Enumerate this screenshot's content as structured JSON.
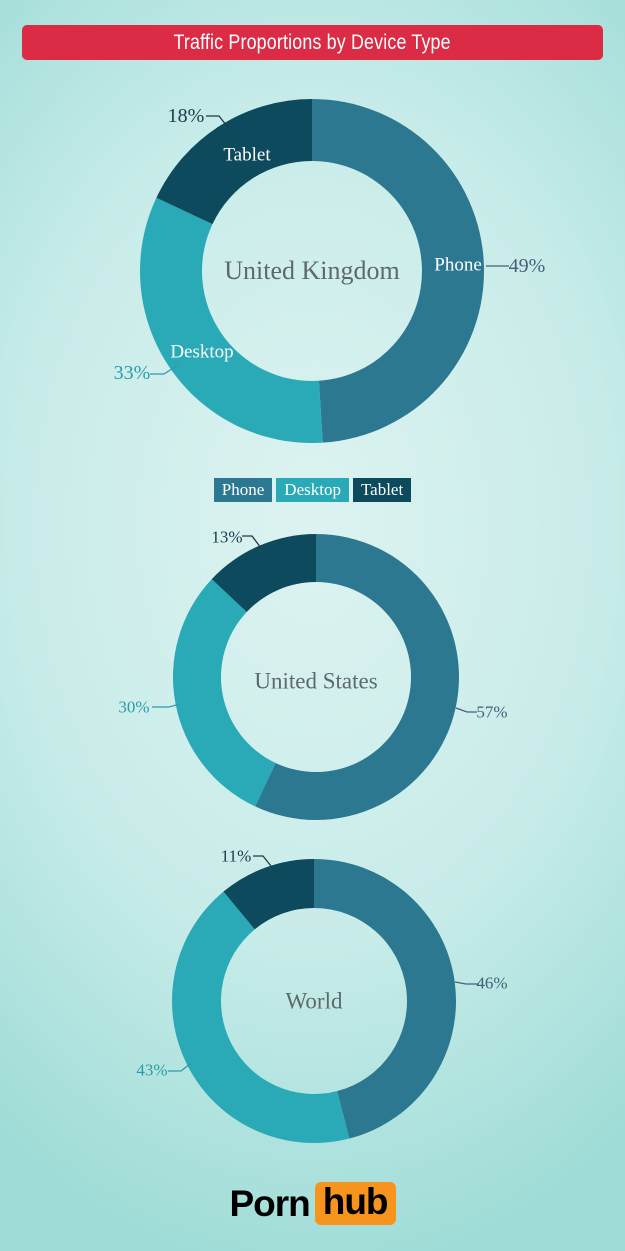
{
  "header": {
    "title": "Traffic Proportions by Device Type"
  },
  "legend": {
    "labels": [
      "Phone",
      "Desktop",
      "Tablet"
    ]
  },
  "palette": {
    "phone": "#2c7891",
    "desktop": "#2aa9b7",
    "tablet": "#0d4a5d",
    "label-phone": "#44607b",
    "label-desktop": "#2b9cab",
    "label-tablet": "#1d3a49",
    "title-bg": "#dc2b44",
    "title-text": "#ffffff",
    "center-label": "#5d6a6d",
    "logo-box": "#f7941d",
    "logo-text": "#000000",
    "bg-center": "#ddf3f1",
    "bg-edge": "#9fdcd7"
  },
  "logo": {
    "part1": "Porn",
    "part2": "hub"
  },
  "chart_data": [
    {
      "type": "pie",
      "title": "United Kingdom",
      "categories": [
        "Phone",
        "Desktop",
        "Tablet"
      ],
      "values": [
        49,
        33,
        18
      ],
      "labels": [
        "49%",
        "33%",
        "18%"
      ],
      "unit": "%",
      "donut": true,
      "legend_position": "below"
    },
    {
      "type": "pie",
      "title": "United States",
      "categories": [
        "Phone",
        "Desktop",
        "Tablet"
      ],
      "values": [
        57,
        30,
        13
      ],
      "labels": [
        "57%",
        "30%",
        "13%"
      ],
      "unit": "%",
      "donut": true
    },
    {
      "type": "pie",
      "title": "World",
      "categories": [
        "Phone",
        "Desktop",
        "Tablet"
      ],
      "values": [
        46,
        43,
        11
      ],
      "labels": [
        "46%",
        "43%",
        "11%"
      ],
      "unit": "%",
      "donut": true
    }
  ]
}
